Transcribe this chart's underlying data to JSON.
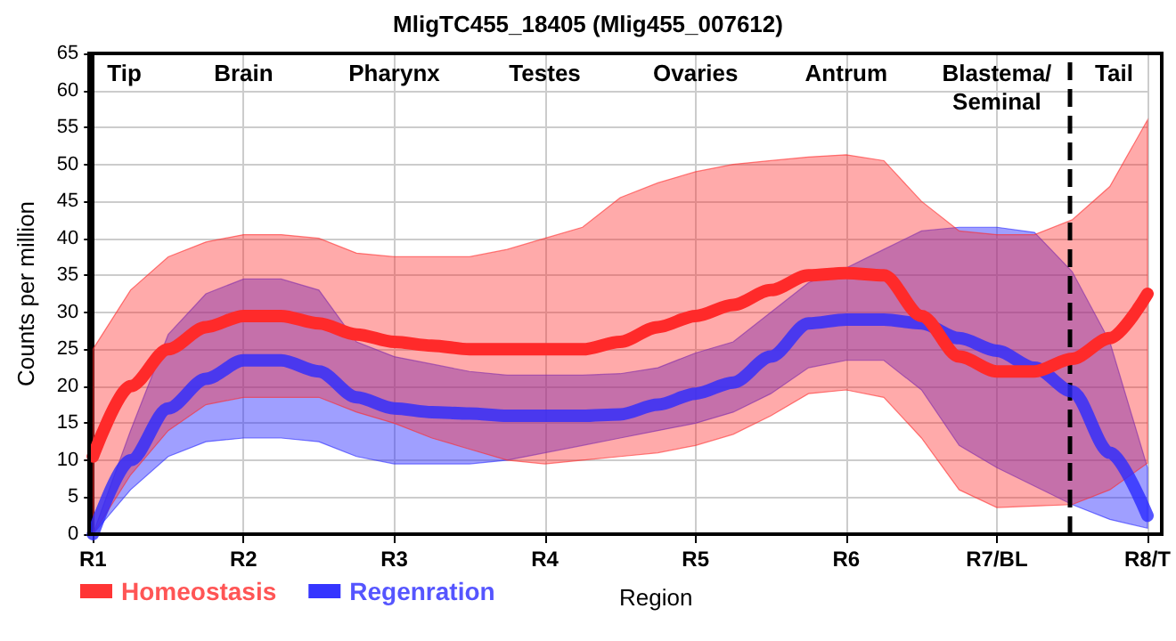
{
  "chart_data": {
    "type": "line",
    "title": "MligTC455_18405 (Mlig455_007612)",
    "xlabel": "Region",
    "ylabel": "Counts per million",
    "categories": [
      "R1",
      null,
      null,
      null,
      "R2",
      null,
      null,
      null,
      "R3",
      null,
      null,
      null,
      "R4",
      null,
      null,
      null,
      "R5",
      null,
      null,
      null,
      "R6",
      null,
      null,
      null,
      "R7/BL",
      null,
      null,
      null,
      "R8/T"
    ],
    "series": [
      {
        "name": "Homeostasis",
        "color": "#ff2a2a",
        "values": [
          10.5,
          20,
          25,
          28,
          29.5,
          29.5,
          28.5,
          27,
          26,
          25.5,
          25,
          25,
          25,
          25,
          26,
          28,
          29.5,
          31,
          33,
          35,
          35.3,
          35,
          29.5,
          24,
          22,
          22,
          23.7,
          26.5,
          32.5
        ],
        "upper": [
          25,
          33,
          37.5,
          39.5,
          40.5,
          40.5,
          40,
          38,
          37.5,
          37.5,
          37.5,
          38.5,
          40,
          41.5,
          45.5,
          47.5,
          49,
          50,
          50.5,
          51,
          51.3,
          50.5,
          45,
          41,
          40.5,
          40.5,
          42.5,
          47,
          56
        ],
        "lower": [
          0,
          8,
          14,
          17.5,
          18.5,
          18.5,
          18.5,
          16.5,
          15,
          13,
          11.5,
          10,
          9.5,
          10,
          10.5,
          11,
          12,
          13.5,
          16,
          19,
          19.5,
          18.5,
          13,
          6,
          3.6,
          3.8,
          4,
          6,
          9.6
        ]
      },
      {
        "name": "Regenration",
        "color": "#2a2aff",
        "values": [
          0,
          10,
          17,
          21,
          23.5,
          23.5,
          22,
          18.5,
          17,
          16.5,
          16.3,
          16,
          16,
          16,
          16.2,
          17.5,
          19,
          20.5,
          24,
          28.5,
          29,
          29,
          28.5,
          26.5,
          24.8,
          22.5,
          19.3,
          11,
          2.5
        ],
        "upper": [
          0,
          14,
          27,
          32.5,
          34.5,
          34.5,
          33,
          26,
          24,
          23,
          22,
          21.5,
          21.5,
          21.5,
          21.7,
          22.5,
          24.5,
          26,
          30,
          34,
          36,
          38.5,
          41,
          41.5,
          41.5,
          40.8,
          35.5,
          26,
          9
        ],
        "lower": [
          0,
          6,
          10.5,
          12.5,
          13,
          13,
          12.5,
          10.5,
          9.5,
          9.5,
          9.5,
          10,
          11,
          12,
          13,
          14,
          15,
          16.5,
          19,
          22.5,
          23.5,
          23.5,
          19.5,
          12,
          9,
          6.5,
          4,
          2,
          0.8
        ]
      }
    ],
    "ylim": [
      0,
      65
    ],
    "yticks": [
      0,
      5,
      10,
      15,
      20,
      25,
      30,
      35,
      40,
      45,
      50,
      55,
      60,
      65
    ],
    "annotations": [
      "Tip",
      "Brain",
      "Pharynx",
      "Testes",
      "Ovaries",
      "Antrum",
      "Blastema/\nSeminal",
      "Tail"
    ],
    "grid": true,
    "legend": "bottom left",
    "line_style": "solid"
  }
}
